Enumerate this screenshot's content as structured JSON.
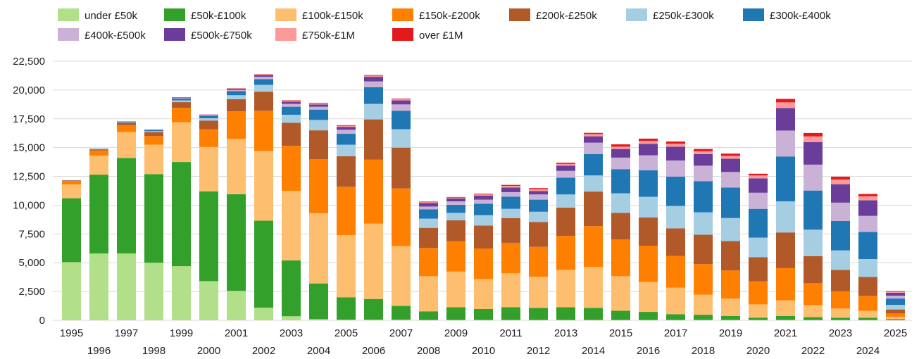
{
  "chart_data": {
    "type": "bar",
    "stacked": true,
    "title": "",
    "xlabel": "",
    "ylabel": "",
    "ylim": [
      0,
      22500
    ],
    "yticks": [
      0,
      2500,
      5000,
      7500,
      10000,
      12500,
      15000,
      17500,
      20000,
      22500
    ],
    "ytick_labels": [
      "0",
      "2,500",
      "5,000",
      "7,500",
      "10,000",
      "12,500",
      "15,000",
      "17,500",
      "20,000",
      "22,500"
    ],
    "grid": true,
    "legend_position": "top",
    "categories": [
      "1995",
      "1996",
      "1997",
      "1998",
      "1999",
      "2000",
      "2001",
      "2002",
      "2003",
      "2004",
      "2005",
      "2006",
      "2007",
      "2008",
      "2009",
      "2010",
      "2011",
      "2012",
      "2013",
      "2014",
      "2015",
      "2016",
      "2017",
      "2018",
      "2019",
      "2020",
      "2021",
      "2022",
      "2023",
      "2024",
      "2025"
    ],
    "series": [
      {
        "name": "under £50k",
        "color": "#b2df8a",
        "values": [
          5050,
          5800,
          5800,
          5000,
          4700,
          3400,
          2550,
          1100,
          350,
          100,
          50,
          50,
          50,
          30,
          30,
          30,
          30,
          30,
          30,
          30,
          30,
          30,
          30,
          30,
          30,
          30,
          30,
          20,
          20,
          20,
          10
        ]
      },
      {
        "name": "£50k-£100k",
        "color": "#33a02c",
        "values": [
          5550,
          6850,
          8300,
          7700,
          9050,
          7800,
          8400,
          7550,
          4850,
          3100,
          1950,
          1800,
          1200,
          750,
          1100,
          950,
          1100,
          1050,
          1100,
          1050,
          800,
          700,
          500,
          450,
          350,
          200,
          350,
          250,
          200,
          200,
          80
        ]
      },
      {
        "name": "£100k-£150k",
        "color": "#fdbf6f",
        "values": [
          1200,
          1650,
          2250,
          2550,
          3450,
          3850,
          4800,
          6050,
          6050,
          6100,
          5400,
          6550,
          5200,
          3050,
          3100,
          2600,
          2950,
          2700,
          3250,
          3550,
          3000,
          2600,
          2300,
          1750,
          1500,
          1150,
          1350,
          1050,
          800,
          600,
          200
        ]
      },
      {
        "name": "£150k-£200k",
        "color": "#ff7f00",
        "values": [
          300,
          450,
          600,
          750,
          1250,
          1550,
          2400,
          3500,
          3900,
          4700,
          4200,
          5550,
          5000,
          2450,
          2650,
          2650,
          2650,
          2600,
          2950,
          3550,
          3200,
          3150,
          2750,
          2650,
          2450,
          2000,
          2800,
          1900,
          1500,
          1300,
          300
        ]
      },
      {
        "name": "£200k-£250k",
        "color": "#b15928",
        "values": [
          50,
          100,
          200,
          350,
          500,
          750,
          1050,
          1650,
          2000,
          2500,
          2650,
          3500,
          3550,
          1750,
          1800,
          2000,
          2150,
          2150,
          2450,
          3000,
          2300,
          2450,
          2400,
          2550,
          2550,
          2100,
          3100,
          2350,
          1850,
          1650,
          350
        ]
      },
      {
        "name": "£250k-£300k",
        "color": "#a6cee3",
        "values": [
          10,
          20,
          50,
          80,
          150,
          200,
          350,
          600,
          700,
          900,
          1000,
          1350,
          1600,
          800,
          650,
          900,
          800,
          900,
          1150,
          1400,
          1700,
          1800,
          1950,
          1950,
          2000,
          1700,
          2700,
          2300,
          1700,
          1550,
          400
        ]
      },
      {
        "name": "£300k-£400k",
        "color": "#1f78b4",
        "values": [
          10,
          20,
          50,
          80,
          150,
          200,
          350,
          500,
          700,
          900,
          950,
          1450,
          1600,
          800,
          700,
          1000,
          1050,
          1050,
          1450,
          1850,
          2100,
          2300,
          2550,
          2700,
          2650,
          2500,
          3900,
          3400,
          2550,
          2350,
          550
        ]
      },
      {
        "name": "£400k-£500k",
        "color": "#cab2d6",
        "values": [
          0,
          10,
          20,
          30,
          50,
          50,
          100,
          200,
          250,
          250,
          350,
          500,
          550,
          250,
          300,
          350,
          400,
          450,
          600,
          1000,
          1000,
          1300,
          1400,
          1350,
          1350,
          1400,
          2250,
          2250,
          1600,
          1400,
          250
        ]
      },
      {
        "name": "£500k-£750k",
        "color": "#6a3d9a",
        "values": [
          0,
          10,
          20,
          30,
          50,
          50,
          100,
          150,
          200,
          200,
          250,
          400,
          350,
          300,
          250,
          350,
          400,
          300,
          450,
          550,
          750,
          1000,
          1200,
          1000,
          1150,
          1250,
          1950,
          1950,
          1600,
          1350,
          250
        ]
      },
      {
        "name": "£750k-£1M",
        "color": "#fb9a99",
        "values": [
          0,
          0,
          10,
          10,
          10,
          20,
          40,
          50,
          70,
          80,
          100,
          100,
          100,
          80,
          80,
          100,
          150,
          150,
          150,
          200,
          200,
          250,
          250,
          250,
          250,
          250,
          500,
          500,
          400,
          350,
          80
        ]
      },
      {
        "name": "over £1M",
        "color": "#e31a1c",
        "values": [
          0,
          0,
          0,
          0,
          10,
          10,
          20,
          30,
          40,
          50,
          50,
          50,
          50,
          50,
          50,
          60,
          80,
          100,
          100,
          100,
          200,
          200,
          200,
          200,
          200,
          150,
          300,
          300,
          250,
          200,
          60
        ]
      }
    ]
  }
}
